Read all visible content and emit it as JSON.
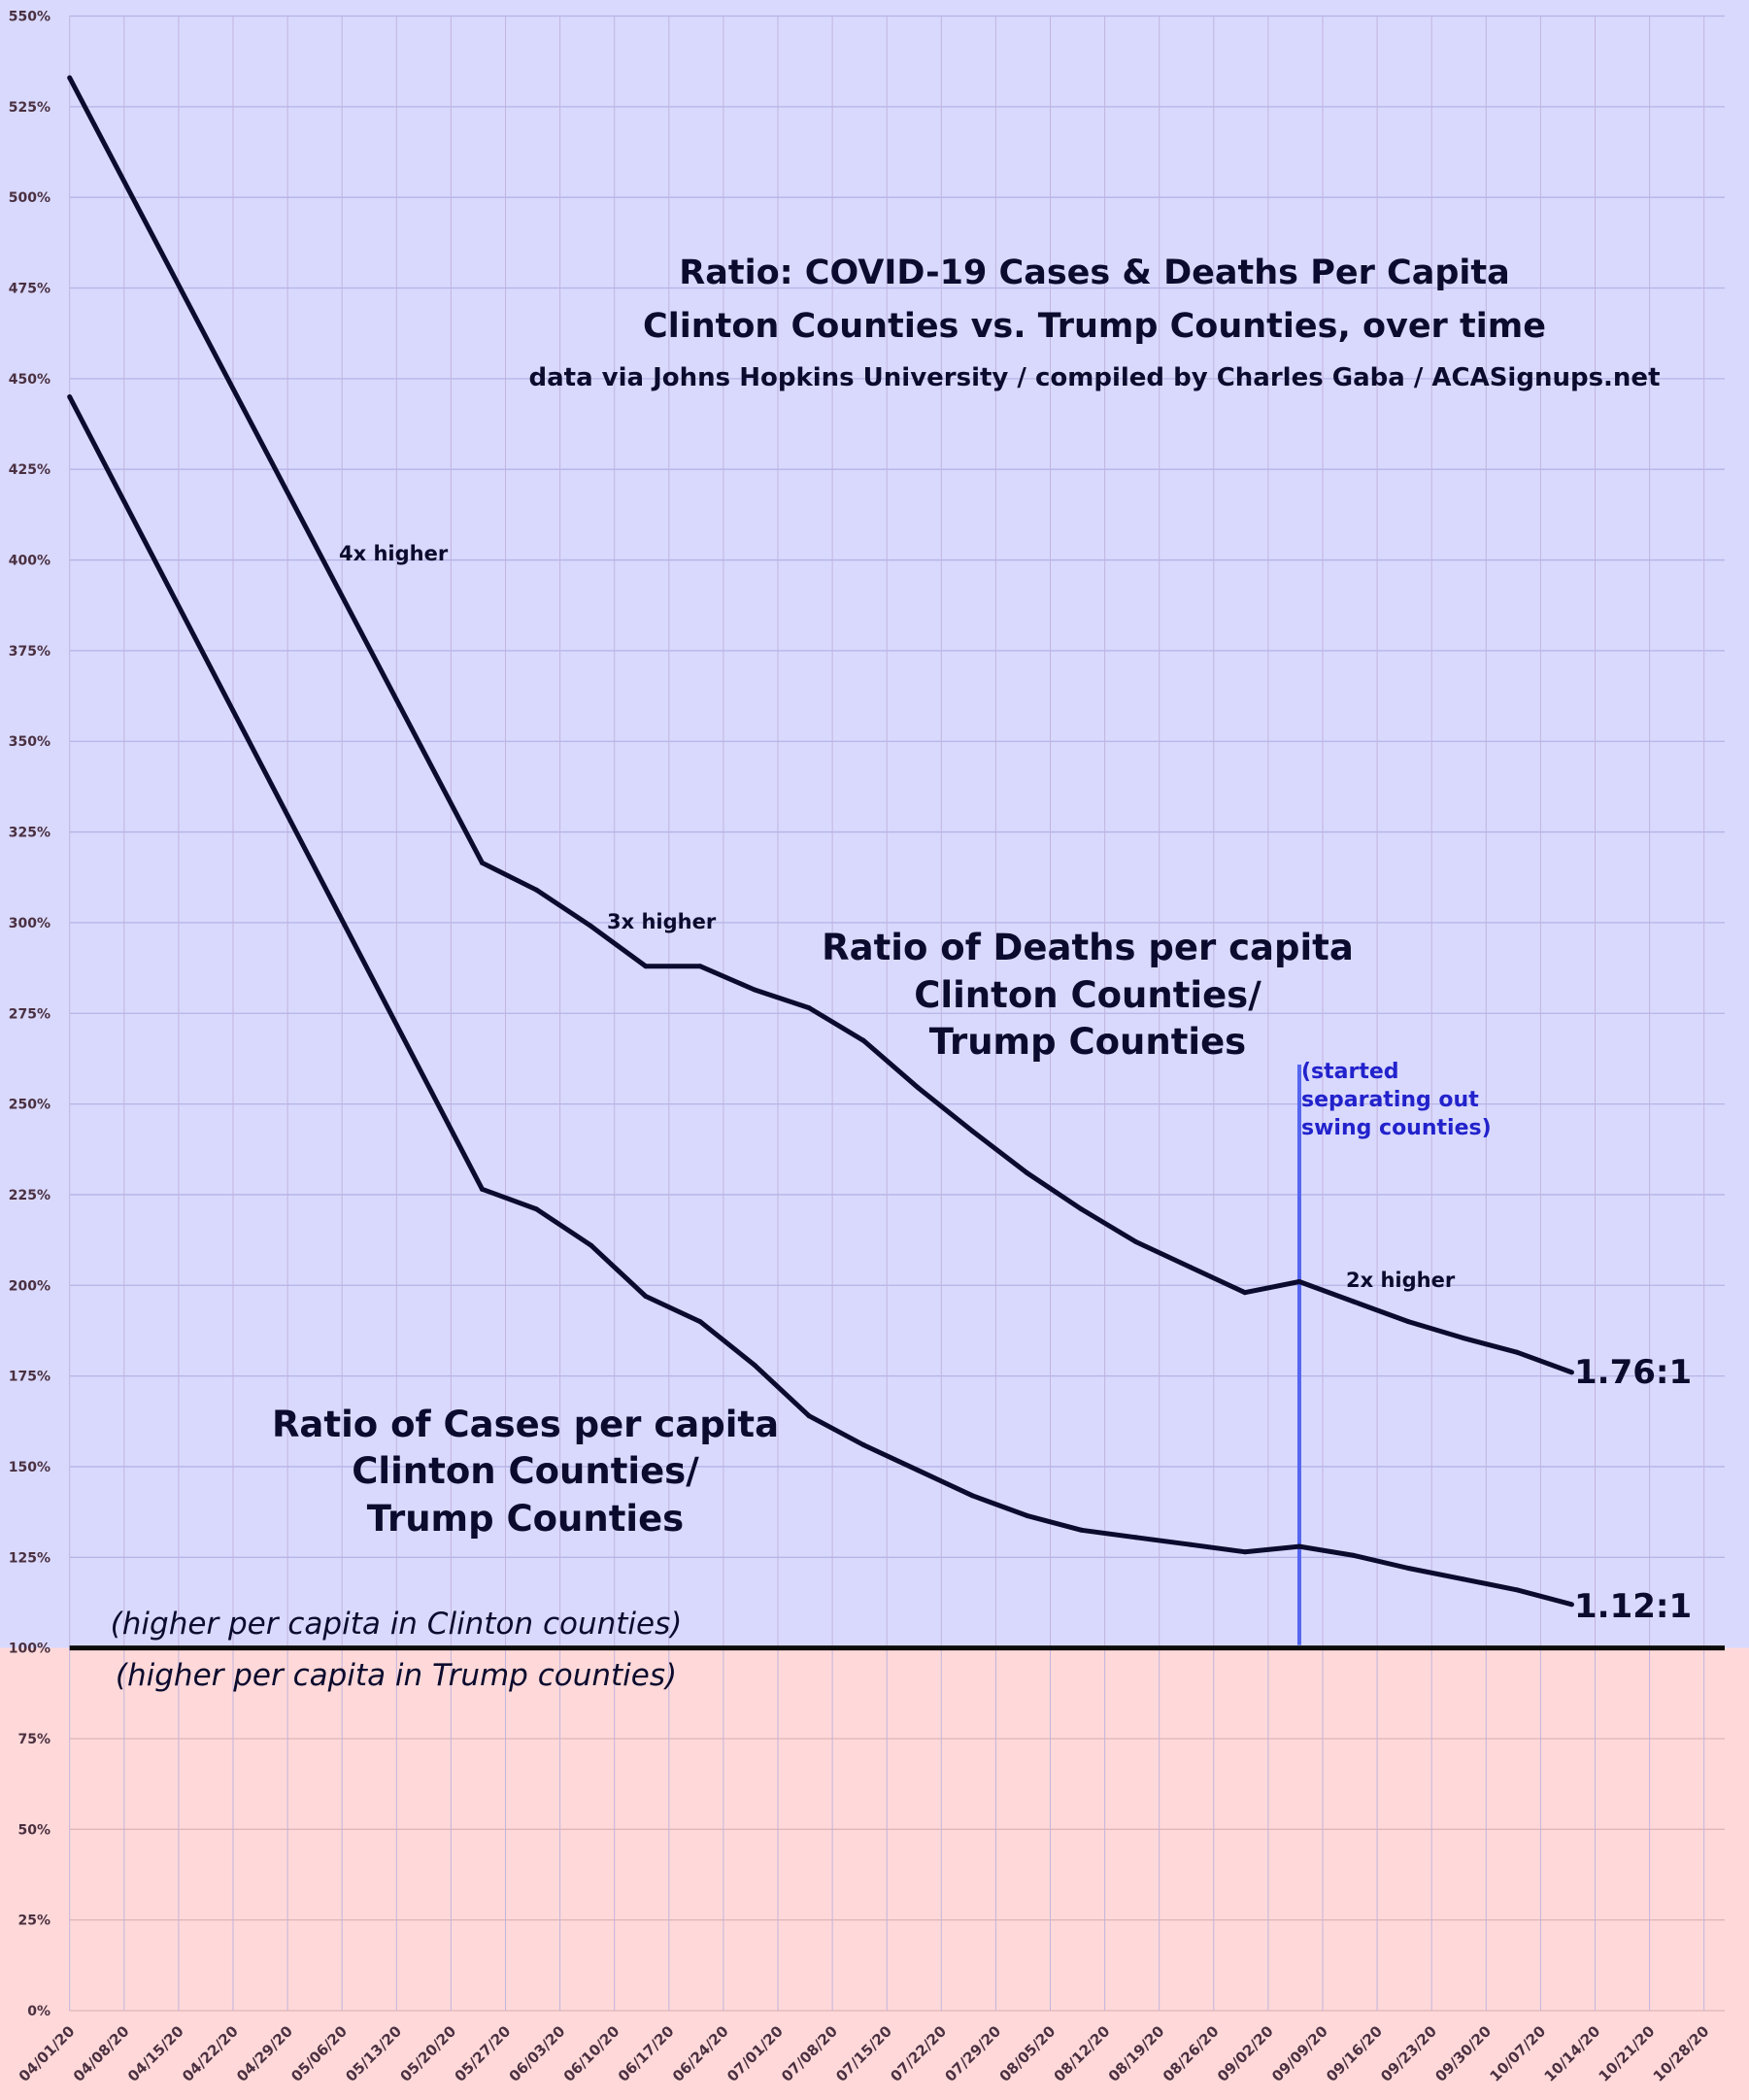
{
  "chart_data": {
    "type": "line",
    "title": "Ratio: COVID-19 Cases & Deaths Per Capita",
    "subtitle": "Clinton Counties vs. Trump Counties, over time",
    "source": "data via Johns Hopkins University / compiled by Charles Gaba / ACASignups.net",
    "xlabel": "",
    "ylabel": "",
    "ylim": [
      0,
      550
    ],
    "y_ticks": [
      "0%",
      "25%",
      "50%",
      "75%",
      "100%",
      "125%",
      "150%",
      "175%",
      "200%",
      "225%",
      "250%",
      "275%",
      "300%",
      "325%",
      "350%",
      "375%",
      "400%",
      "425%",
      "450%",
      "475%",
      "500%",
      "525%",
      "550%"
    ],
    "x_ticks": [
      "04/01/20",
      "04/08/20",
      "04/15/20",
      "04/22/20",
      "04/29/20",
      "05/06/20",
      "05/13/20",
      "05/20/20",
      "05/27/20",
      "06/03/20",
      "06/10/20",
      "06/17/20",
      "06/24/20",
      "07/01/20",
      "07/08/20",
      "07/15/20",
      "07/22/20",
      "07/29/20",
      "08/05/20",
      "08/12/20",
      "08/19/20",
      "08/26/20",
      "09/02/20",
      "09/09/20",
      "09/16/20",
      "09/23/20",
      "09/30/20",
      "10/07/20",
      "10/14/20",
      "10/21/20",
      "10/28/20"
    ],
    "grid": true,
    "x": [
      "04/01/20",
      "05/24/20",
      "05/31/20",
      "06/07/20",
      "06/14/20",
      "06/21/20",
      "06/28/20",
      "07/05/20",
      "07/12/20",
      "07/19/20",
      "07/26/20",
      "08/02/20",
      "08/09/20",
      "08/16/20",
      "08/23/20",
      "08/30/20",
      "09/06/20",
      "09/13/20",
      "09/20/20",
      "09/27/20",
      "10/04/20",
      "10/11/20"
    ],
    "series": [
      {
        "name": "Ratio of Deaths per capita Clinton Counties/ Trump Counties",
        "label_lines": [
          "Ratio of Deaths per capita",
          "Clinton Counties/",
          "Trump Counties"
        ],
        "values": [
          533,
          316.5,
          309,
          299,
          288,
          288,
          281.5,
          276.5,
          267.5,
          254.5,
          242.5,
          231,
          221,
          212,
          205,
          198,
          201,
          195.5,
          190,
          185.5,
          181.5,
          176
        ],
        "end_label": "1.76:1"
      },
      {
        "name": "Ratio of Cases per capita Clinton Counties/ Trump Counties",
        "label_lines": [
          "Ratio of Cases per capita",
          "Clinton Counties/",
          "Trump Counties"
        ],
        "values": [
          445,
          226.5,
          221,
          211,
          197,
          190,
          178,
          164,
          156,
          149,
          142,
          136.5,
          132.5,
          130.5,
          128.5,
          126.5,
          128,
          125.5,
          122,
          119,
          116,
          112
        ],
        "end_label": "1.12:1"
      }
    ],
    "annotations": {
      "four_x": "4x higher",
      "three_x": "3x higher",
      "two_x": "2x higher",
      "swing_note": [
        "(started",
        "separating out",
        "swing counties)"
      ],
      "swing_date": "09/06/20",
      "above_baseline": "(higher per capita in Clinton counties)",
      "below_baseline": "(higher per capita in Trump counties)"
    },
    "baseline": 100,
    "colors": {
      "upper_bg": "#d9d9fe",
      "lower_bg": "#ffd9d9",
      "line": "#0b0b2e",
      "marker_line": "#5566ee",
      "note": "#2222cc"
    }
  }
}
